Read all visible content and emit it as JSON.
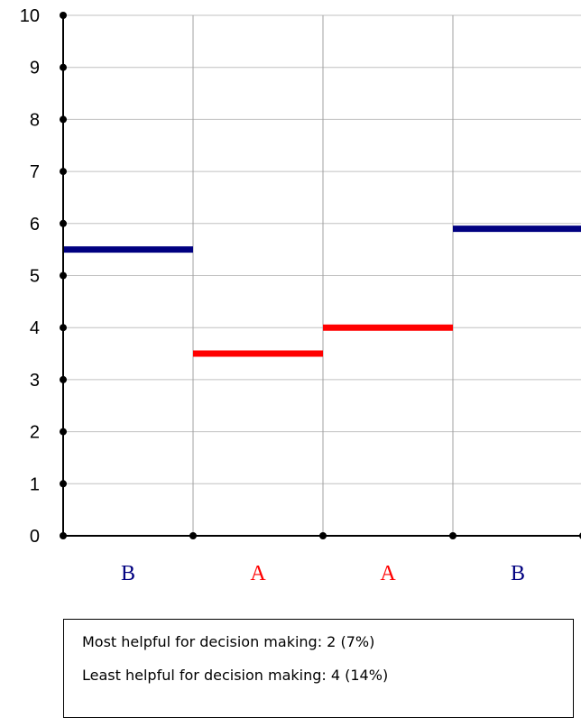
{
  "chart_data": {
    "type": "step",
    "ylim": [
      0,
      10
    ],
    "yticks": [
      "0",
      "1",
      "2",
      "3",
      "4",
      "5",
      "6",
      "7",
      "8",
      "9",
      "10"
    ],
    "grid": true,
    "segments": [
      {
        "label": "B",
        "value": 5.5,
        "color": "#000080"
      },
      {
        "label": "A",
        "value": 3.5,
        "color": "#ff0000"
      },
      {
        "label": "A",
        "value": 4.0,
        "color": "#ff0000"
      },
      {
        "label": "B",
        "value": 5.9,
        "color": "#000080"
      }
    ]
  },
  "summary": {
    "most_helpful": "Most helpful for decision making: 2 (7%)",
    "least_helpful": "Least helpful for decision making: 4 (14%)"
  }
}
